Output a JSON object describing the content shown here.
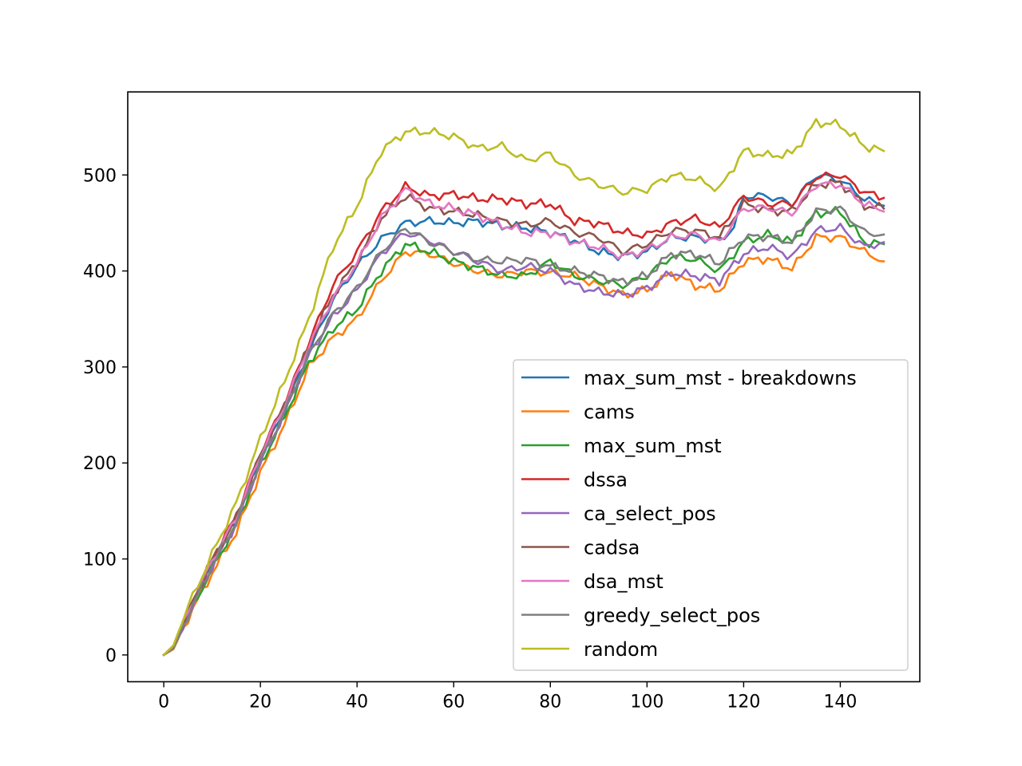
{
  "chart_data": {
    "type": "line",
    "title": "",
    "xlabel": "",
    "ylabel": "",
    "xlim": [
      -7.45,
      156.45
    ],
    "ylim": [
      -27.9,
      586.5
    ],
    "xticks": [
      0,
      20,
      40,
      60,
      80,
      100,
      120,
      140
    ],
    "yticks": [
      0,
      100,
      200,
      300,
      400,
      500
    ],
    "grid": false,
    "legend_position": "lower right",
    "series": [
      {
        "name": "max_sum_mst - breakdowns",
        "color": "#1f77b4",
        "anchors": [
          [
            0,
            0
          ],
          [
            2,
            8
          ],
          [
            5,
            42
          ],
          [
            10,
            95
          ],
          [
            15,
            140
          ],
          [
            20,
            205
          ],
          [
            25,
            255
          ],
          [
            30,
            315
          ],
          [
            35,
            370
          ],
          [
            40,
            405
          ],
          [
            45,
            433
          ],
          [
            50,
            450
          ],
          [
            55,
            452
          ],
          [
            60,
            450
          ],
          [
            65,
            452
          ],
          [
            70,
            447
          ],
          [
            75,
            445
          ],
          [
            80,
            440
          ],
          [
            85,
            432
          ],
          [
            90,
            420
          ],
          [
            95,
            415
          ],
          [
            100,
            420
          ],
          [
            105,
            435
          ],
          [
            110,
            435
          ],
          [
            115,
            432
          ],
          [
            118,
            445
          ],
          [
            120,
            478
          ],
          [
            125,
            478
          ],
          [
            130,
            470
          ],
          [
            135,
            500
          ],
          [
            140,
            495
          ],
          [
            145,
            475
          ],
          [
            149,
            468
          ]
        ]
      },
      {
        "name": "cams",
        "color": "#ff7f0e",
        "anchors": [
          [
            0,
            0
          ],
          [
            2,
            6
          ],
          [
            5,
            38
          ],
          [
            10,
            85
          ],
          [
            15,
            128
          ],
          [
            20,
            190
          ],
          [
            25,
            240
          ],
          [
            30,
            300
          ],
          [
            35,
            330
          ],
          [
            40,
            350
          ],
          [
            45,
            390
          ],
          [
            50,
            420
          ],
          [
            55,
            418
          ],
          [
            60,
            408
          ],
          [
            65,
            400
          ],
          [
            70,
            395
          ],
          [
            75,
            400
          ],
          [
            80,
            398
          ],
          [
            85,
            395
          ],
          [
            90,
            385
          ],
          [
            95,
            375
          ],
          [
            100,
            380
          ],
          [
            105,
            398
          ],
          [
            110,
            385
          ],
          [
            115,
            380
          ],
          [
            120,
            410
          ],
          [
            125,
            413
          ],
          [
            130,
            402
          ],
          [
            135,
            435
          ],
          [
            140,
            435
          ],
          [
            145,
            420
          ],
          [
            149,
            410
          ]
        ]
      },
      {
        "name": "max_sum_mst",
        "color": "#2ca02c",
        "anchors": [
          [
            0,
            0
          ],
          [
            2,
            7
          ],
          [
            5,
            40
          ],
          [
            10,
            90
          ],
          [
            15,
            135
          ],
          [
            20,
            198
          ],
          [
            25,
            248
          ],
          [
            30,
            305
          ],
          [
            35,
            340
          ],
          [
            40,
            360
          ],
          [
            45,
            400
          ],
          [
            50,
            428
          ],
          [
            55,
            420
          ],
          [
            60,
            410
          ],
          [
            65,
            403
          ],
          [
            70,
            395
          ],
          [
            75,
            395
          ],
          [
            80,
            410
          ],
          [
            85,
            395
          ],
          [
            90,
            390
          ],
          [
            95,
            385
          ],
          [
            100,
            395
          ],
          [
            105,
            415
          ],
          [
            110,
            412
          ],
          [
            115,
            400
          ],
          [
            120,
            430
          ],
          [
            125,
            438
          ],
          [
            130,
            430
          ],
          [
            135,
            460
          ],
          [
            140,
            462
          ],
          [
            145,
            430
          ],
          [
            149,
            428
          ]
        ]
      },
      {
        "name": "dssa",
        "color": "#d62728",
        "anchors": [
          [
            0,
            0
          ],
          [
            2,
            8
          ],
          [
            5,
            45
          ],
          [
            10,
            100
          ],
          [
            15,
            145
          ],
          [
            20,
            210
          ],
          [
            25,
            262
          ],
          [
            30,
            325
          ],
          [
            35,
            385
          ],
          [
            40,
            420
          ],
          [
            45,
            462
          ],
          [
            50,
            488
          ],
          [
            55,
            478
          ],
          [
            60,
            480
          ],
          [
            65,
            475
          ],
          [
            70,
            475
          ],
          [
            75,
            470
          ],
          [
            80,
            470
          ],
          [
            85,
            452
          ],
          [
            90,
            450
          ],
          [
            95,
            440
          ],
          [
            100,
            437
          ],
          [
            105,
            450
          ],
          [
            110,
            455
          ],
          [
            115,
            445
          ],
          [
            120,
            478
          ],
          [
            125,
            470
          ],
          [
            130,
            470
          ],
          [
            135,
            498
          ],
          [
            140,
            500
          ],
          [
            145,
            482
          ],
          [
            149,
            476
          ]
        ]
      },
      {
        "name": "ca_select_pos",
        "color": "#9467bd",
        "anchors": [
          [
            0,
            0
          ],
          [
            2,
            7
          ],
          [
            5,
            41
          ],
          [
            10,
            92
          ],
          [
            15,
            137
          ],
          [
            20,
            200
          ],
          [
            25,
            252
          ],
          [
            30,
            312
          ],
          [
            35,
            352
          ],
          [
            40,
            380
          ],
          [
            45,
            418
          ],
          [
            50,
            440
          ],
          [
            55,
            432
          ],
          [
            60,
            420
          ],
          [
            65,
            410
          ],
          [
            70,
            400
          ],
          [
            75,
            405
          ],
          [
            80,
            400
          ],
          [
            85,
            385
          ],
          [
            90,
            378
          ],
          [
            95,
            375
          ],
          [
            100,
            382
          ],
          [
            105,
            398
          ],
          [
            110,
            395
          ],
          [
            115,
            390
          ],
          [
            120,
            418
          ],
          [
            125,
            425
          ],
          [
            130,
            415
          ],
          [
            135,
            442
          ],
          [
            140,
            445
          ],
          [
            145,
            425
          ],
          [
            149,
            430
          ]
        ]
      },
      {
        "name": "cadsa",
        "color": "#8c564b",
        "anchors": [
          [
            0,
            0
          ],
          [
            2,
            8
          ],
          [
            5,
            44
          ],
          [
            10,
            98
          ],
          [
            15,
            143
          ],
          [
            20,
            208
          ],
          [
            25,
            260
          ],
          [
            30,
            322
          ],
          [
            35,
            375
          ],
          [
            40,
            410
          ],
          [
            45,
            455
          ],
          [
            50,
            478
          ],
          [
            55,
            465
          ],
          [
            60,
            462
          ],
          [
            65,
            458
          ],
          [
            70,
            452
          ],
          [
            75,
            448
          ],
          [
            80,
            452
          ],
          [
            85,
            440
          ],
          [
            90,
            435
          ],
          [
            95,
            420
          ],
          [
            100,
            428
          ],
          [
            105,
            442
          ],
          [
            110,
            442
          ],
          [
            115,
            435
          ],
          [
            120,
            470
          ],
          [
            125,
            463
          ],
          [
            130,
            462
          ],
          [
            135,
            490
          ],
          [
            140,
            492
          ],
          [
            145,
            468
          ],
          [
            149,
            465
          ]
        ]
      },
      {
        "name": "dsa_mst",
        "color": "#e377c2",
        "anchors": [
          [
            0,
            0
          ],
          [
            2,
            8
          ],
          [
            5,
            44
          ],
          [
            10,
            98
          ],
          [
            15,
            143
          ],
          [
            20,
            208
          ],
          [
            25,
            260
          ],
          [
            30,
            322
          ],
          [
            35,
            372
          ],
          [
            40,
            408
          ],
          [
            45,
            455
          ],
          [
            50,
            485
          ],
          [
            55,
            470
          ],
          [
            60,
            465
          ],
          [
            65,
            458
          ],
          [
            70,
            448
          ],
          [
            75,
            440
          ],
          [
            80,
            440
          ],
          [
            85,
            430
          ],
          [
            90,
            425
          ],
          [
            95,
            415
          ],
          [
            100,
            422
          ],
          [
            105,
            435
          ],
          [
            110,
            438
          ],
          [
            115,
            430
          ],
          [
            120,
            465
          ],
          [
            125,
            466
          ],
          [
            130,
            460
          ],
          [
            135,
            490
          ],
          [
            140,
            490
          ],
          [
            145,
            470
          ],
          [
            149,
            462
          ]
        ]
      },
      {
        "name": "greedy_select_pos",
        "color": "#7f7f7f",
        "anchors": [
          [
            0,
            0
          ],
          [
            2,
            7
          ],
          [
            5,
            41
          ],
          [
            10,
            93
          ],
          [
            15,
            138
          ],
          [
            20,
            202
          ],
          [
            25,
            253
          ],
          [
            30,
            313
          ],
          [
            35,
            355
          ],
          [
            40,
            382
          ],
          [
            45,
            420
          ],
          [
            50,
            445
          ],
          [
            55,
            430
          ],
          [
            60,
            420
          ],
          [
            65,
            412
          ],
          [
            70,
            410
          ],
          [
            75,
            412
          ],
          [
            80,
            405
          ],
          [
            85,
            400
          ],
          [
            90,
            395
          ],
          [
            95,
            388
          ],
          [
            100,
            395
          ],
          [
            105,
            418
          ],
          [
            110,
            418
          ],
          [
            115,
            408
          ],
          [
            120,
            435
          ],
          [
            125,
            436
          ],
          [
            130,
            430
          ],
          [
            135,
            462
          ],
          [
            140,
            465
          ],
          [
            145,
            440
          ],
          [
            149,
            438
          ]
        ]
      },
      {
        "name": "random",
        "color": "#bcbd22",
        "anchors": [
          [
            0,
            0
          ],
          [
            2,
            10
          ],
          [
            5,
            50
          ],
          [
            10,
            105
          ],
          [
            15,
            158
          ],
          [
            20,
            225
          ],
          [
            25,
            285
          ],
          [
            30,
            350
          ],
          [
            35,
            425
          ],
          [
            40,
            468
          ],
          [
            45,
            525
          ],
          [
            50,
            545
          ],
          [
            55,
            545
          ],
          [
            60,
            540
          ],
          [
            65,
            528
          ],
          [
            70,
            530
          ],
          [
            75,
            515
          ],
          [
            80,
            522
          ],
          [
            85,
            500
          ],
          [
            90,
            490
          ],
          [
            95,
            482
          ],
          [
            100,
            485
          ],
          [
            105,
            500
          ],
          [
            110,
            496
          ],
          [
            115,
            485
          ],
          [
            120,
            525
          ],
          [
            125,
            520
          ],
          [
            130,
            522
          ],
          [
            135,
            555
          ],
          [
            140,
            552
          ],
          [
            145,
            530
          ],
          [
            149,
            525
          ]
        ]
      }
    ]
  }
}
